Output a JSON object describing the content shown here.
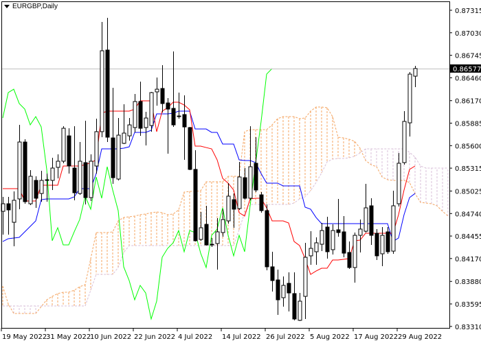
{
  "window": {
    "symbol_title": "EURGBP,Daily",
    "menu_icon": "triangle-down-icon"
  },
  "chart_data": {
    "type": "candlestick",
    "title": "EURGBP,Daily",
    "indicator": "Ichimoku",
    "current_price": "0.86577",
    "ylim": [
      0.8331,
      0.8745
    ],
    "price_ticks": [
      "0.87315",
      "0.87030",
      "0.86745",
      "0.86460",
      "0.86170",
      "0.85885",
      "0.85600",
      "0.85315",
      "0.85025",
      "0.84740",
      "0.84455",
      "0.84170",
      "0.83880",
      "0.83595",
      "0.83310"
    ],
    "time_ticks": [
      {
        "label": "19 May 2022",
        "bar": 0
      },
      {
        "label": "31 May 2022",
        "bar": 8
      },
      {
        "label": "10 Jun 2022",
        "bar": 16
      },
      {
        "label": "22 Jun 2022",
        "bar": 24
      },
      {
        "label": "4 Jul 2022",
        "bar": 32
      },
      {
        "label": "14 Jul 2022",
        "bar": 40
      },
      {
        "label": "26 Jul 2022",
        "bar": 48
      },
      {
        "label": "5 Aug 2022",
        "bar": 56
      },
      {
        "label": "17 Aug 2022",
        "bar": 64
      },
      {
        "label": "29 Aug 2022",
        "bar": 72
      }
    ],
    "colors": {
      "bull_body": "#ffffff",
      "bear_body": "#000000",
      "tenkan": "#ff0000",
      "kijun": "#0000ff",
      "chikou": "#00ff00",
      "senkou_a": "#f4a460",
      "senkou_b": "#d8bfd8",
      "price_line": "#c0c0c0",
      "price_label_bg": "#000000"
    },
    "ohlc": [
      [
        0.84768,
        0.84951,
        0.84473,
        0.84864
      ],
      [
        0.84864,
        0.84951,
        0.84473,
        0.84786
      ],
      [
        0.84629,
        0.8502,
        0.84325,
        0.84908
      ],
      [
        0.84925,
        0.85863,
        0.84795,
        0.85646
      ],
      [
        0.85646,
        0.85681,
        0.84864,
        0.8489
      ],
      [
        0.84864,
        0.8529,
        0.84847,
        0.85212
      ],
      [
        0.8516,
        0.85212,
        0.84812,
        0.84934
      ],
      [
        0.84994,
        0.85281,
        0.8489,
        0.8516
      ],
      [
        0.85168,
        0.85246,
        0.8489,
        0.85164
      ],
      [
        0.8516,
        0.85446,
        0.85038,
        0.85316
      ],
      [
        0.85325,
        0.8549,
        0.85186,
        0.85403
      ],
      [
        0.85403,
        0.85846,
        0.85377,
        0.8582
      ],
      [
        0.85724,
        0.8582,
        0.85246,
        0.85342
      ],
      [
        0.85316,
        0.85846,
        0.84908,
        0.85003
      ],
      [
        0.84994,
        0.85646,
        0.84977,
        0.85403
      ],
      [
        0.85385,
        0.85916,
        0.84855,
        0.84942
      ],
      [
        0.84942,
        0.8549,
        0.84899,
        0.85403
      ],
      [
        0.85342,
        0.85942,
        0.85246,
        0.85777
      ],
      [
        0.85777,
        0.87167,
        0.85707,
        0.86802
      ],
      [
        0.86811,
        0.87219,
        0.85646,
        0.85707
      ],
      [
        0.85698,
        0.86333,
        0.85116,
        0.85194
      ],
      [
        0.85177,
        0.8595,
        0.8516,
        0.85733
      ],
      [
        0.85629,
        0.86124,
        0.8562,
        0.85759
      ],
      [
        0.85724,
        0.8595,
        0.85664,
        0.85863
      ],
      [
        0.85829,
        0.86254,
        0.85768,
        0.86159
      ],
      [
        0.86159,
        0.86411,
        0.85724,
        0.8582
      ],
      [
        0.85829,
        0.86029,
        0.85603,
        0.8595
      ],
      [
        0.85855,
        0.86281,
        0.85777,
        0.86272
      ],
      [
        0.86281,
        0.86463,
        0.86107,
        0.86315
      ],
      [
        0.86324,
        0.86619,
        0.8602,
        0.86133
      ],
      [
        0.86141,
        0.86202,
        0.85498,
        0.86063
      ],
      [
        0.86072,
        0.86793,
        0.85837,
        0.85863
      ],
      [
        0.85976,
        0.86272,
        0.85942,
        0.85968
      ],
      [
        0.85994,
        0.86237,
        0.8542,
        0.85837
      ],
      [
        0.85829,
        0.85837,
        0.8529,
        0.85299
      ],
      [
        0.85299,
        0.85542,
        0.84386,
        0.84395
      ],
      [
        0.84412,
        0.8476,
        0.84395,
        0.8456
      ],
      [
        0.84603,
        0.84838,
        0.84334,
        0.84343
      ],
      [
        0.84351,
        0.8443,
        0.84317,
        0.84343
      ],
      [
        0.8436,
        0.84682,
        0.8403,
        0.84508
      ],
      [
        0.84499,
        0.84795,
        0.84447,
        0.84664
      ],
      [
        0.84647,
        0.85125,
        0.84612,
        0.8496
      ],
      [
        0.84916,
        0.84994,
        0.8456,
        0.84795
      ],
      [
        0.84803,
        0.85394,
        0.84786,
        0.85203
      ],
      [
        0.85194,
        0.85316,
        0.84916,
        0.84934
      ],
      [
        0.84934,
        0.85846,
        0.84908,
        0.85333
      ],
      [
        0.85377,
        0.85707,
        0.85012,
        0.85038
      ],
      [
        0.84977,
        0.85012,
        0.84751,
        0.84777
      ],
      [
        0.84777,
        0.84855,
        0.84021,
        0.84065
      ],
      [
        0.84065,
        0.84256,
        0.83752,
        0.83891
      ],
      [
        0.83899,
        0.8403,
        0.83456,
        0.83647
      ],
      [
        0.83674,
        0.83943,
        0.83561,
        0.8383
      ],
      [
        0.83856,
        0.83995,
        0.835,
        0.83734
      ],
      [
        0.83726,
        0.83995,
        0.83387,
        0.83404
      ],
      [
        0.83387,
        0.83734,
        0.83378,
        0.8363
      ],
      [
        0.83691,
        0.84369,
        0.83404,
        0.84186
      ],
      [
        0.84204,
        0.84516,
        0.84091,
        0.84299
      ],
      [
        0.84256,
        0.84438,
        0.84091,
        0.84369
      ],
      [
        0.84351,
        0.84621,
        0.84264,
        0.84525
      ],
      [
        0.84569,
        0.84699,
        0.84169,
        0.84256
      ],
      [
        0.84282,
        0.84603,
        0.84221,
        0.84525
      ],
      [
        0.84534,
        0.84925,
        0.84447,
        0.84499
      ],
      [
        0.84508,
        0.84708,
        0.84186,
        0.84238
      ],
      [
        0.84247,
        0.84386,
        0.84039,
        0.84056
      ],
      [
        0.84056,
        0.84499,
        0.83865,
        0.84464
      ],
      [
        0.84464,
        0.84664,
        0.84247,
        0.84543
      ],
      [
        0.84516,
        0.85116,
        0.84499,
        0.84812
      ],
      [
        0.84838,
        0.84934,
        0.84343,
        0.84464
      ],
      [
        0.8449,
        0.84543,
        0.84151,
        0.84204
      ],
      [
        0.8423,
        0.84569,
        0.84073,
        0.84464
      ],
      [
        0.84508,
        0.84569,
        0.8423,
        0.84256
      ],
      [
        0.84264,
        0.85029,
        0.8423,
        0.84838
      ],
      [
        0.84864,
        0.85507,
        0.84829,
        0.85377
      ],
      [
        0.85385,
        0.86037,
        0.85359,
        0.85907
      ],
      [
        0.85889,
        0.86533,
        0.85716,
        0.86506
      ],
      [
        0.8648,
        0.86611,
        0.86341,
        0.86577
      ]
    ],
    "tenkan": [
      0.85055,
      0.85055,
      0.85055,
      0.85055,
      0.84899,
      0.84899,
      0.84899,
      0.85099,
      0.85099,
      0.85099,
      0.85099,
      0.85342,
      0.85342,
      0.85342,
      0.85342,
      0.85359,
      0.85385,
      0.8542,
      0.86011,
      0.86037,
      0.86037,
      0.86037,
      0.86037,
      0.86037,
      0.86063,
      0.86168,
      0.86168,
      0.86168,
      0.85777,
      0.86037,
      0.86081,
      0.8615,
      0.8615,
      0.86115,
      0.86055,
      0.85594,
      0.85594,
      0.85576,
      0.85559,
      0.8542,
      0.85186,
      0.85125,
      0.85038,
      0.84751,
      0.84708,
      0.84925,
      0.84934,
      0.84934,
      0.84812,
      0.84647,
      0.84647,
      0.84647,
      0.84621,
      0.84386,
      0.84334,
      0.84169,
      0.83969,
      0.84012,
      0.84047,
      0.84047,
      0.84151,
      0.84151,
      0.8416,
      0.84169,
      0.84395,
      0.84403,
      0.8449,
      0.8449,
      0.8449,
      0.8449,
      0.8449,
      0.8449,
      0.84725,
      0.85038,
      0.85299,
      0.85342
    ],
    "kijun": [
      0.84386,
      0.84421,
      0.8443,
      0.84438,
      0.84508,
      0.84577,
      0.84647,
      0.84916,
      0.84925,
      0.84925,
      0.84925,
      0.84925,
      0.84925,
      0.84951,
      0.85055,
      0.85055,
      0.85055,
      0.85246,
      0.85559,
      0.85559,
      0.85559,
      0.85559,
      0.85568,
      0.85585,
      0.85768,
      0.85768,
      0.85768,
      0.85794,
      0.86002,
      0.86002,
      0.86002,
      0.86011,
      0.86037,
      0.86037,
      0.86037,
      0.85811,
      0.85811,
      0.85811,
      0.85768,
      0.85768,
      0.8562,
      0.8562,
      0.8562,
      0.8542,
      0.85412,
      0.85412,
      0.85385,
      0.85246,
      0.85125,
      0.85125,
      0.85125,
      0.8509,
      0.8509,
      0.8509,
      0.8509,
      0.84821,
      0.84795,
      0.8469,
      0.84612,
      0.84612,
      0.84612,
      0.84612,
      0.84612,
      0.84612,
      0.84612,
      0.84612,
      0.84612,
      0.84612,
      0.84612,
      0.84612,
      0.84612,
      0.84386,
      0.8443,
      0.84725,
      0.84942,
      0.84994
    ],
    "senkou_a": [
      0.83821,
      0.83595,
      0.83474,
      0.83474,
      0.83474,
      0.83474,
      0.83474,
      0.83561,
      0.83647,
      0.83691,
      0.83726,
      0.83743,
      0.83743,
      0.83769,
      0.83813,
      0.83839,
      0.84169,
      0.84499,
      0.84499,
      0.84499,
      0.84508,
      0.84647,
      0.8469,
      0.84699,
      0.84708,
      0.84725,
      0.84734,
      0.84751,
      0.8476,
      0.84751,
      0.84725,
      0.84734,
      0.84786,
      0.85012,
      0.8502,
      0.8502,
      0.85029,
      0.85142,
      0.85142,
      0.85142,
      0.85142,
      0.85212,
      0.85212,
      0.85212,
      0.85777,
      0.85803,
      0.85803,
      0.85803,
      0.85803,
      0.85863,
      0.85942,
      0.85968,
      0.85968,
      0.85968,
      0.85942,
      0.8595,
      0.86037,
      0.86089,
      0.86089,
      0.86081,
      0.85968,
      0.85707,
      0.85698,
      0.85681,
      0.85655,
      0.85568,
      0.85412,
      0.85359,
      0.85333,
      0.85203,
      0.85168,
      0.8516,
      0.8516,
      0.8516,
      0.85133,
      0.84994,
      0.84881,
      0.84873,
      0.84864,
      0.84838,
      0.84768,
      0.84708
    ],
    "senkou_b": [
      0.83569,
      0.83569,
      0.83569,
      0.83569,
      0.83569,
      0.83569,
      0.83569,
      0.83569,
      0.83569,
      0.83569,
      0.83569,
      0.83569,
      0.83569,
      0.83569,
      0.83569,
      0.83569,
      0.83769,
      0.83969,
      0.83969,
      0.83969,
      0.83969,
      0.84056,
      0.84247,
      0.84334,
      0.84334,
      0.84334,
      0.84334,
      0.84334,
      0.84334,
      0.84334,
      0.84334,
      0.84334,
      0.84334,
      0.84334,
      0.84334,
      0.84334,
      0.84334,
      0.84334,
      0.84334,
      0.84334,
      0.84334,
      0.84334,
      0.84334,
      0.84534,
      0.84751,
      0.84855,
      0.84855,
      0.84855,
      0.84855,
      0.84855,
      0.84855,
      0.84855,
      0.84855,
      0.84873,
      0.84925,
      0.84951,
      0.85029,
      0.85133,
      0.85255,
      0.85394,
      0.85429,
      0.85438,
      0.85438,
      0.85446,
      0.85464,
      0.85507,
      0.85559,
      0.85559,
      0.85559,
      0.85559,
      0.85559,
      0.85559,
      0.85559,
      0.85559,
      0.85516,
      0.85455,
      0.85342,
      0.85316,
      0.85316,
      0.85316,
      0.85316,
      0.85316
    ]
  }
}
